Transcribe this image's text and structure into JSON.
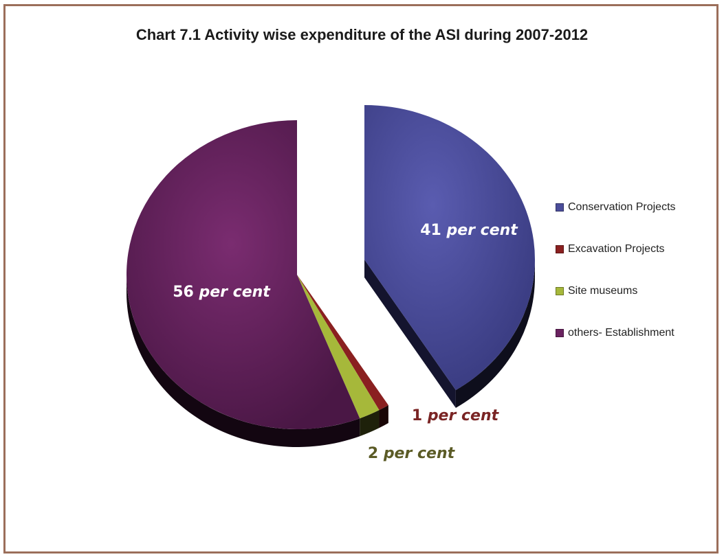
{
  "chart_data": {
    "type": "pie",
    "title": "Chart  7.1 Activity wise expenditure of the ASI during 2007-2012",
    "style": "3d-exploded",
    "legend_position": "right",
    "slices": [
      {
        "name": "Conservation Projects",
        "value": 41,
        "color": "#4b4d9a",
        "label_num": "41",
        "label_unit": "per cent",
        "label_color": "#ffffff"
      },
      {
        "name": "Excavation Projects",
        "value": 1,
        "color": "#8a2020",
        "label_num": "1",
        "label_unit": "per cent",
        "label_color": "#7a2424"
      },
      {
        "name": "Site museums",
        "value": 2,
        "color": "#a6b83a",
        "label_num": "2",
        "label_unit": "per cent",
        "label_color": "#5b5b26"
      },
      {
        "name": "others- Establishment",
        "value": 56,
        "color": "#6a2260",
        "label_num": "56",
        "label_unit": "per cent",
        "label_color": "#ffffff"
      }
    ]
  }
}
